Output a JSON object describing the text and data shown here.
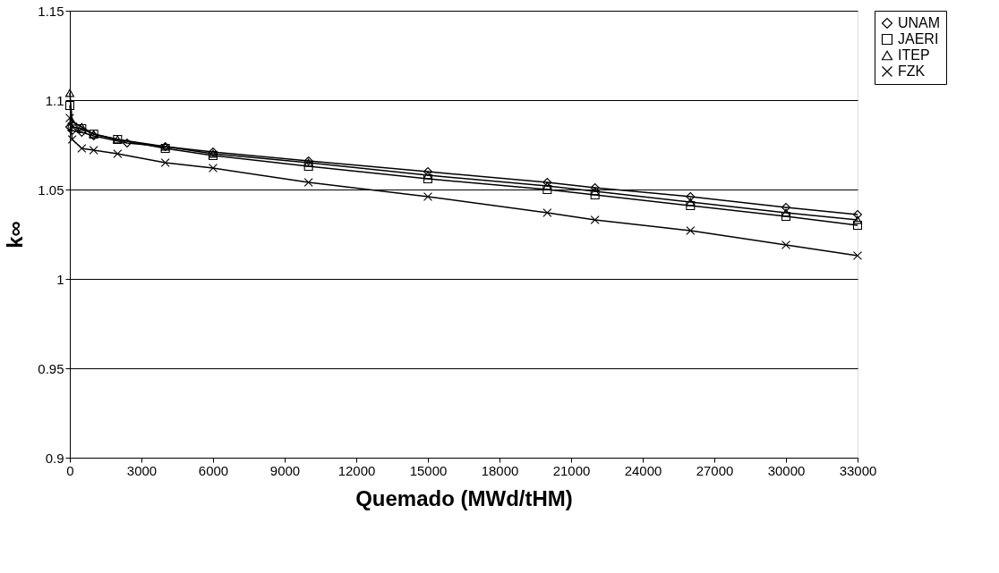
{
  "chart_data": {
    "type": "line",
    "xlabel": "Quemado (MWd/tHM)",
    "ylabel": "k∞",
    "xlim": [
      0,
      33000
    ],
    "xticks": [
      0,
      3000,
      6000,
      9000,
      12000,
      15000,
      18000,
      21000,
      24000,
      27000,
      30000,
      33000
    ],
    "ylim": [
      0.9,
      1.15
    ],
    "yticks": [
      0.9,
      0.95,
      1,
      1.05,
      1.1,
      1.15
    ],
    "grid": "y",
    "legend": "right",
    "line_style": "solid",
    "series": [
      {
        "name": "UNAM",
        "color": "#000000",
        "marker": "diamond",
        "x": [
          0,
          100,
          500,
          1000,
          2400,
          4000,
          6000,
          10000,
          15000,
          20000,
          22000,
          26000,
          30000,
          33000
        ],
        "values": [
          1.085,
          1.083,
          1.082,
          1.08,
          1.076,
          1.074,
          1.071,
          1.066,
          1.06,
          1.054,
          1.051,
          1.046,
          1.04,
          1.036
        ]
      },
      {
        "name": "JAERI",
        "color": "#000000",
        "marker": "square",
        "x": [
          0,
          100,
          500,
          1000,
          2000,
          4000,
          6000,
          10000,
          15000,
          20000,
          22000,
          26000,
          30000,
          33000
        ],
        "values": [
          1.097,
          1.085,
          1.084,
          1.081,
          1.078,
          1.073,
          1.069,
          1.063,
          1.056,
          1.05,
          1.047,
          1.041,
          1.035,
          1.03
        ]
      },
      {
        "name": "ITEP",
        "color": "#000000",
        "marker": "triangle",
        "x": [
          0,
          100,
          500,
          1000,
          2000,
          4000,
          6000,
          10000,
          15000,
          20000,
          22000,
          26000,
          30000,
          33000
        ],
        "values": [
          1.104,
          1.088,
          1.085,
          1.081,
          1.078,
          1.074,
          1.07,
          1.065,
          1.058,
          1.052,
          1.049,
          1.043,
          1.037,
          1.033
        ]
      },
      {
        "name": "FZK",
        "color": "#000000",
        "marker": "cross",
        "x": [
          0,
          100,
          500,
          1000,
          2000,
          4000,
          6000,
          10000,
          15000,
          20000,
          22000,
          26000,
          30000,
          33000
        ],
        "values": [
          1.09,
          1.078,
          1.073,
          1.072,
          1.07,
          1.065,
          1.062,
          1.054,
          1.046,
          1.037,
          1.033,
          1.027,
          1.019,
          1.013
        ]
      }
    ]
  }
}
